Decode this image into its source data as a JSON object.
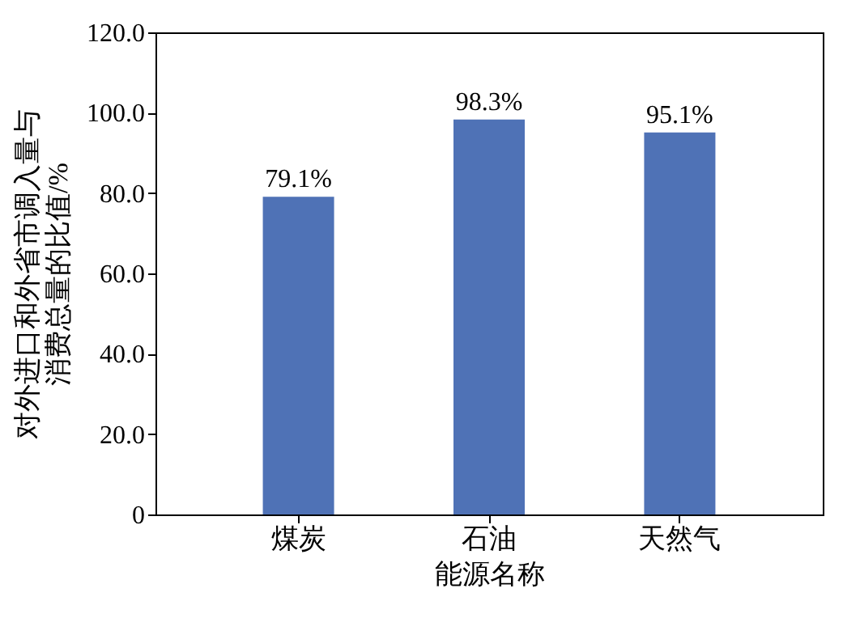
{
  "chart_data": {
    "type": "bar",
    "xlabel": "能源名称",
    "ylabel": "对外进口和外省市调入量与消费总量的比值/%",
    "categories": [
      "煤炭",
      "石油",
      "天然气"
    ],
    "values": [
      79.1,
      98.3,
      95.1
    ],
    "value_labels": [
      "79.1%",
      "98.3%",
      "95.1%"
    ],
    "color": "#4f72b6",
    "ylim": [
      0,
      120
    ],
    "yticks": [
      {
        "value": 0,
        "label": "0"
      },
      {
        "value": 20,
        "label": "20.0"
      },
      {
        "value": 40,
        "label": "40.0"
      },
      {
        "value": 60,
        "label": "60.0"
      },
      {
        "value": 80,
        "label": "80.0"
      },
      {
        "value": 100,
        "label": "100.0"
      },
      {
        "value": 120,
        "label": "120.0"
      }
    ],
    "grid": false
  }
}
